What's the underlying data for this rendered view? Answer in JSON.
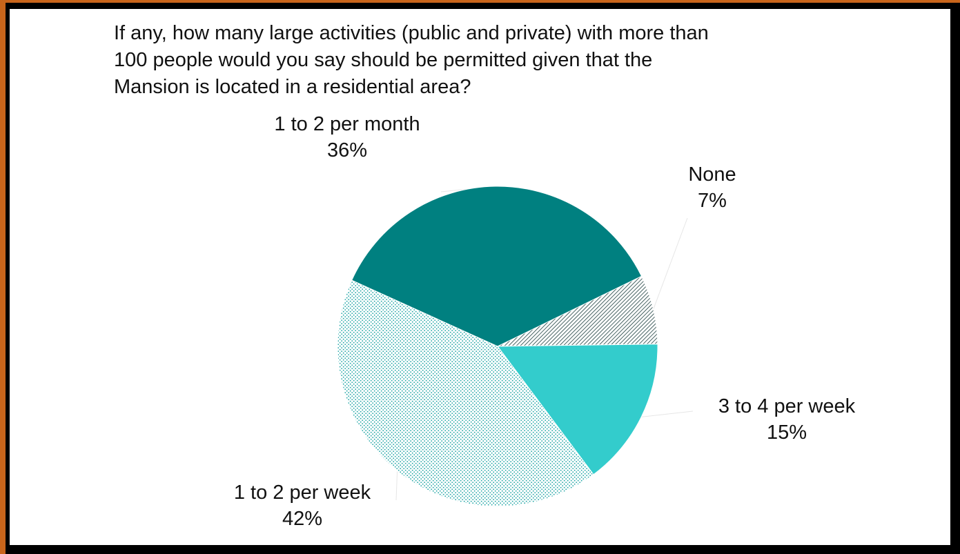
{
  "chart_data": {
    "type": "pie",
    "title_lines": [
      "If any, how many large activities (public and private) with more than",
      "100 people would you say should be permitted given that the",
      "Mansion is located in a residential area?"
    ],
    "slices": [
      {
        "name": "None",
        "value": 7,
        "label": "7%",
        "fill": "#ffffff",
        "pattern": "diagonal-lines",
        "color": "#1a3d3d"
      },
      {
        "name": "3 to 4 per week",
        "value": 15,
        "label": "15%",
        "fill": "#33cccc",
        "pattern": "solid",
        "color": "#33cccc"
      },
      {
        "name": "1 to 2 per week",
        "value": 42,
        "label": "42%",
        "fill": "#ffffff",
        "pattern": "dots",
        "color": "#1fa5a5"
      },
      {
        "name": "1 to 2 per month",
        "value": 36,
        "label": "36%",
        "fill": "#008080",
        "pattern": "solid",
        "color": "#008080"
      }
    ]
  }
}
